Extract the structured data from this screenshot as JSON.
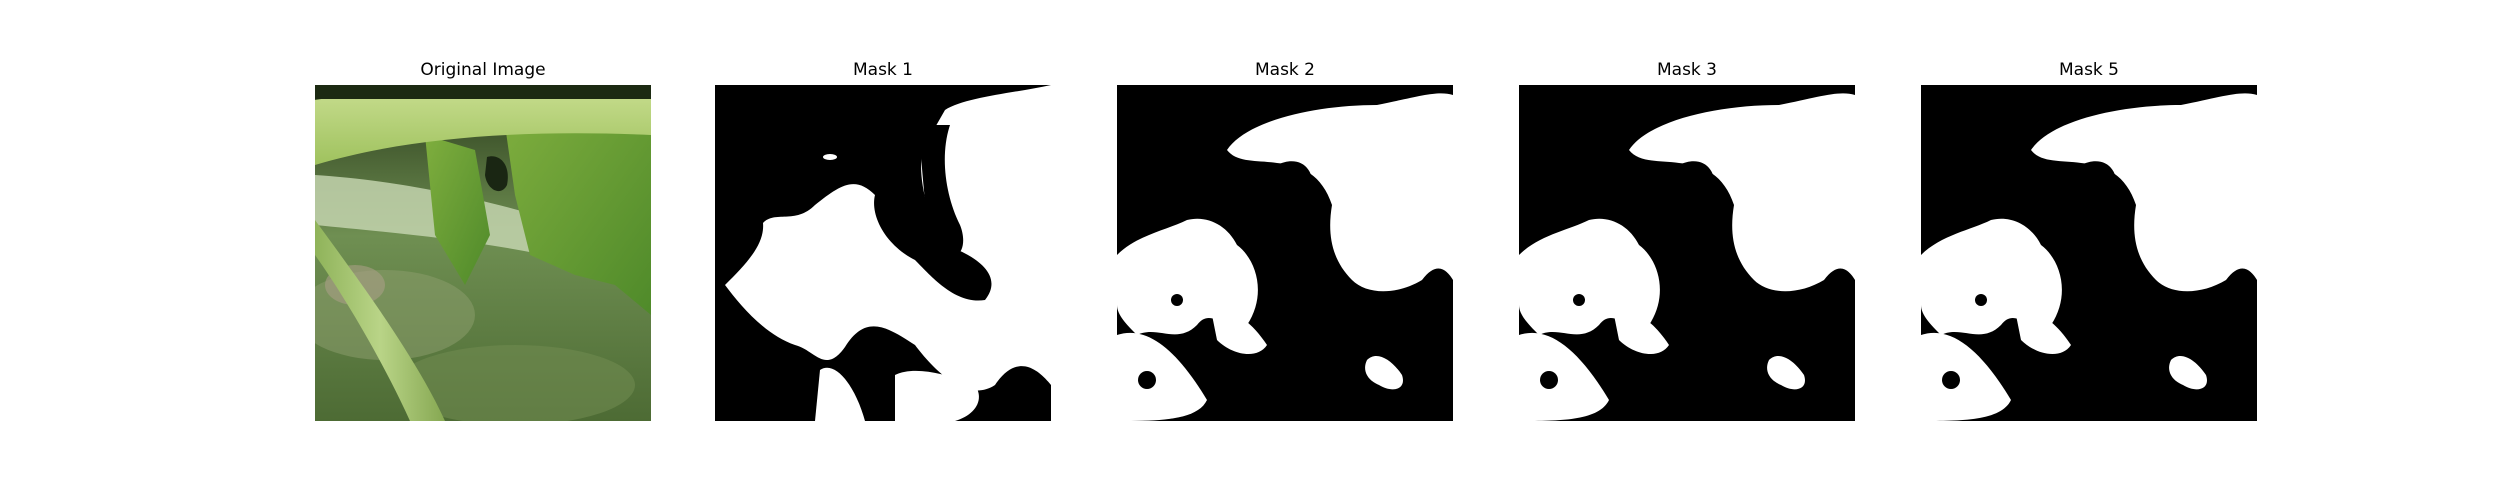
{
  "figure": {
    "panels": [
      {
        "title": "Original Image",
        "kind": "photo"
      },
      {
        "title": "Mask 1",
        "kind": "mask"
      },
      {
        "title": "Mask 2",
        "kind": "mask"
      },
      {
        "title": "Mask 3",
        "kind": "mask"
      },
      {
        "title": "Mask 5",
        "kind": "mask"
      }
    ]
  },
  "colors": {
    "background": "#ffffff",
    "mask_background": "#000000",
    "mask_foreground": "#ffffff",
    "leaf_light": "#b5d27c",
    "leaf_mid": "#8cb34a",
    "leaf_dark": "#4f7a2a",
    "shadow_dark": "#1f2f14"
  }
}
